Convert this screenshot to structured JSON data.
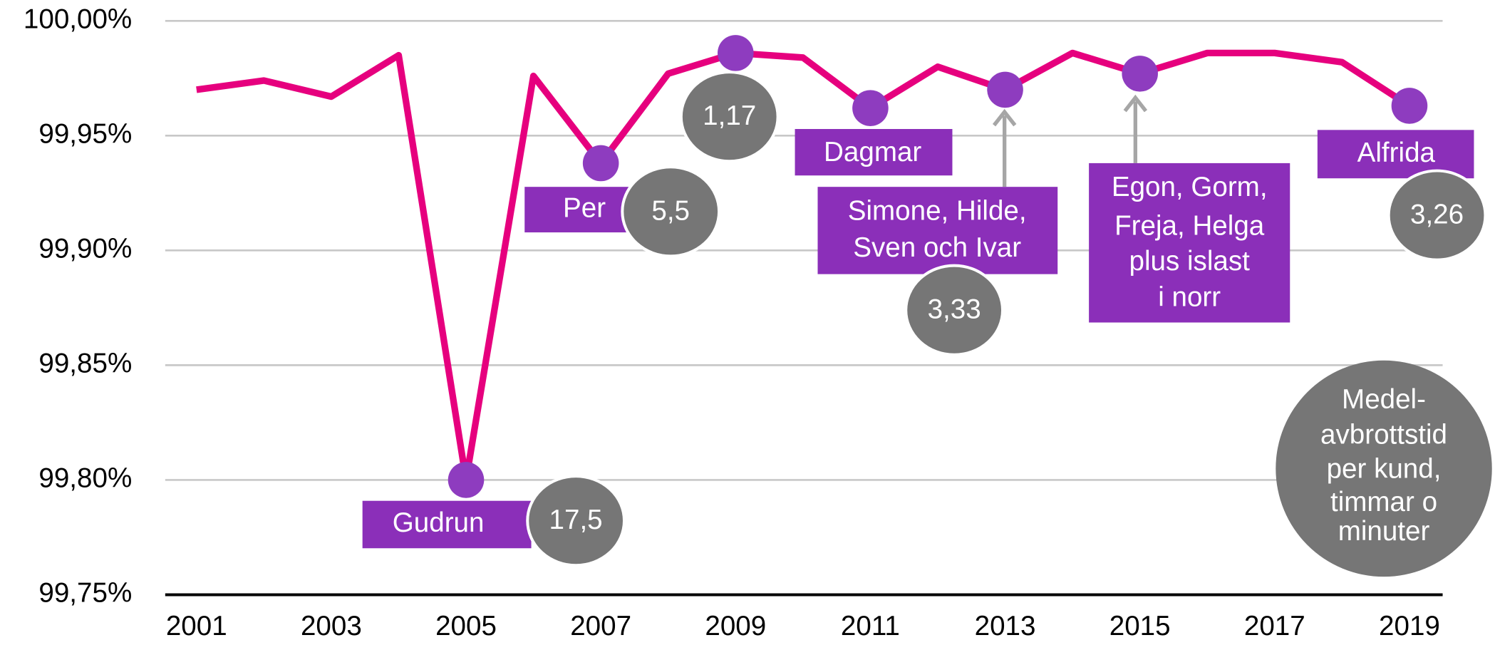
{
  "chart_data": {
    "type": "line",
    "x": [
      2001,
      2002,
      2003,
      2004,
      2005,
      2006,
      2007,
      2008,
      2009,
      2010,
      2011,
      2012,
      2013,
      2014,
      2015,
      2016,
      2017,
      2018,
      2019
    ],
    "series": [
      {
        "color": "#e6007e",
        "values": [
          99.97,
          99.974,
          99.967,
          99.985,
          99.8,
          99.976,
          99.938,
          99.977,
          99.986,
          99.984,
          99.962,
          99.98,
          99.97,
          99.986,
          99.977,
          99.986,
          99.986,
          99.982,
          99.963
        ]
      }
    ],
    "xlim": [
      2001,
      2019
    ],
    "xticks": [
      2001,
      2003,
      2005,
      2007,
      2009,
      2011,
      2013,
      2015,
      2017,
      2019
    ],
    "ylim": [
      99.75,
      100.0
    ],
    "yticks": [
      {
        "value": 99.75,
        "label": "99,75%"
      },
      {
        "value": 99.8,
        "label": "99,80%"
      },
      {
        "value": 99.85,
        "label": "99,85%"
      },
      {
        "value": 99.9,
        "label": "99,90%"
      },
      {
        "value": 99.95,
        "label": "99,95%"
      },
      {
        "value": 100.0,
        "label": "100,00%"
      }
    ],
    "grid": true,
    "marker_color": "#8e3cbf",
    "box_color": "#8b2fb9",
    "bubble_color": "#767676",
    "annotations": [
      {
        "label": [
          "Gudrun"
        ],
        "value": "17,5"
      },
      {
        "label": [
          "Per"
        ],
        "value": "5,5"
      },
      {
        "label": [],
        "value": "1,17"
      },
      {
        "label": [
          "Dagmar"
        ],
        "value": null
      },
      {
        "label": [
          "Simone, Hilde,",
          "Sven och Ivar"
        ],
        "value": "3,33"
      },
      {
        "label": [
          "Egon, Gorm,",
          "Freja, Helga",
          "plus islast",
          "i norr"
        ],
        "value": null
      },
      {
        "label": [
          "Alfrida"
        ],
        "value": "3,26"
      }
    ],
    "note": [
      "Medel-",
      "avbrottstid",
      "per kund,",
      "timmar o",
      "minuter"
    ]
  }
}
